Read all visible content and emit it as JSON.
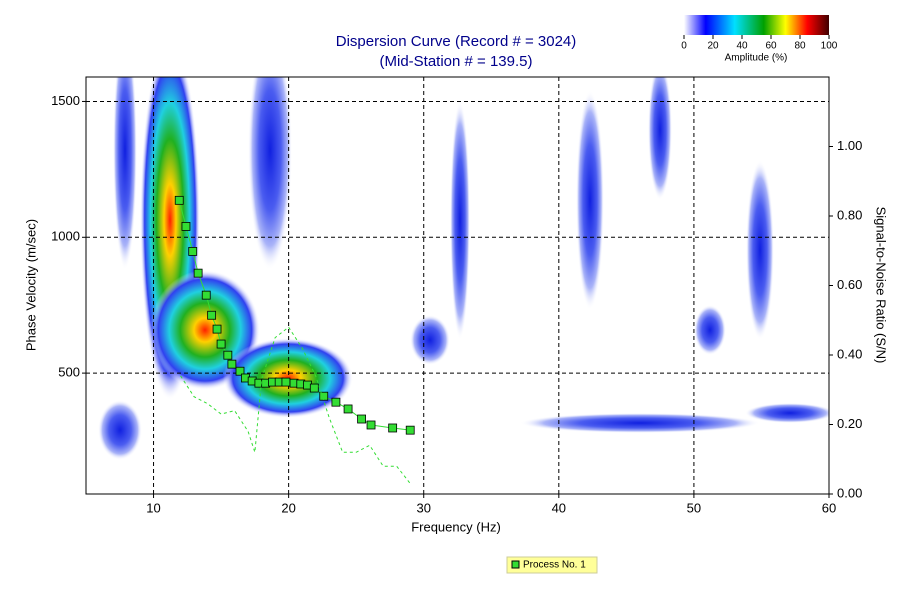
{
  "chart_data": {
    "type": "line",
    "title": [
      "Dispersion Curve (Record # = 3024)",
      "(Mid-Station # = 139.5)"
    ],
    "x_label": "Frequency (Hz)",
    "y_label": "Phase Velocity (m/sec)",
    "y2_label": "Signal-to-Noise Ratio (S/N)",
    "xlim": [
      5,
      60
    ],
    "xticks": [
      10,
      20,
      30,
      40,
      50,
      60
    ],
    "ylim": [
      55,
      1590
    ],
    "yticks": [
      500,
      1000,
      1500
    ],
    "y2lim": [
      0,
      1.2
    ],
    "y2ticks": [
      {
        "value": 0,
        "label": "0.00"
      },
      {
        "value": 0.2,
        "label": "0.20"
      },
      {
        "value": 0.4,
        "label": "0.40"
      },
      {
        "value": 0.6,
        "label": "0.60"
      },
      {
        "value": 0.8,
        "label": "0.80"
      },
      {
        "value": 1,
        "label": "1.00"
      }
    ],
    "grid": true,
    "series": [
      {
        "name": "Process No. 1",
        "color": "#33dd33",
        "x": [
          11.9,
          12.4,
          12.9,
          13.3,
          13.9,
          14.3,
          14.7,
          15.0,
          15.5,
          15.8,
          16.4,
          16.8,
          17.3,
          17.8,
          18.3,
          18.8,
          19.3,
          19.8,
          20.4,
          20.9,
          21.4,
          21.9,
          22.6,
          23.5,
          24.4,
          25.4,
          26.1,
          27.7,
          29.0
        ],
        "values": [
          1136,
          1040,
          948,
          868,
          787,
          713,
          662,
          607,
          566,
          533,
          507,
          482,
          471,
          463,
          463,
          467,
          467,
          467,
          463,
          460,
          456,
          445,
          415,
          393,
          368,
          331,
          309,
          298,
          290
        ]
      },
      {
        "axis": "y2",
        "color": "#33dd33",
        "x": [
          12,
          13,
          14,
          15,
          16,
          17,
          17.5,
          18,
          19,
          20,
          21,
          22,
          23,
          24,
          25,
          26,
          27,
          28,
          29
        ],
        "values": [
          0.34,
          0.28,
          0.26,
          0.23,
          0.24,
          0.18,
          0.12,
          0.33,
          0.45,
          0.48,
          0.42,
          0.34,
          0.22,
          0.12,
          0.12,
          0.14,
          0.08,
          0.08,
          0.03
        ]
      }
    ],
    "colorbar": {
      "ticks": [
        0,
        20,
        40,
        60,
        80,
        100
      ],
      "label": "Amplitude (%)"
    }
  }
}
